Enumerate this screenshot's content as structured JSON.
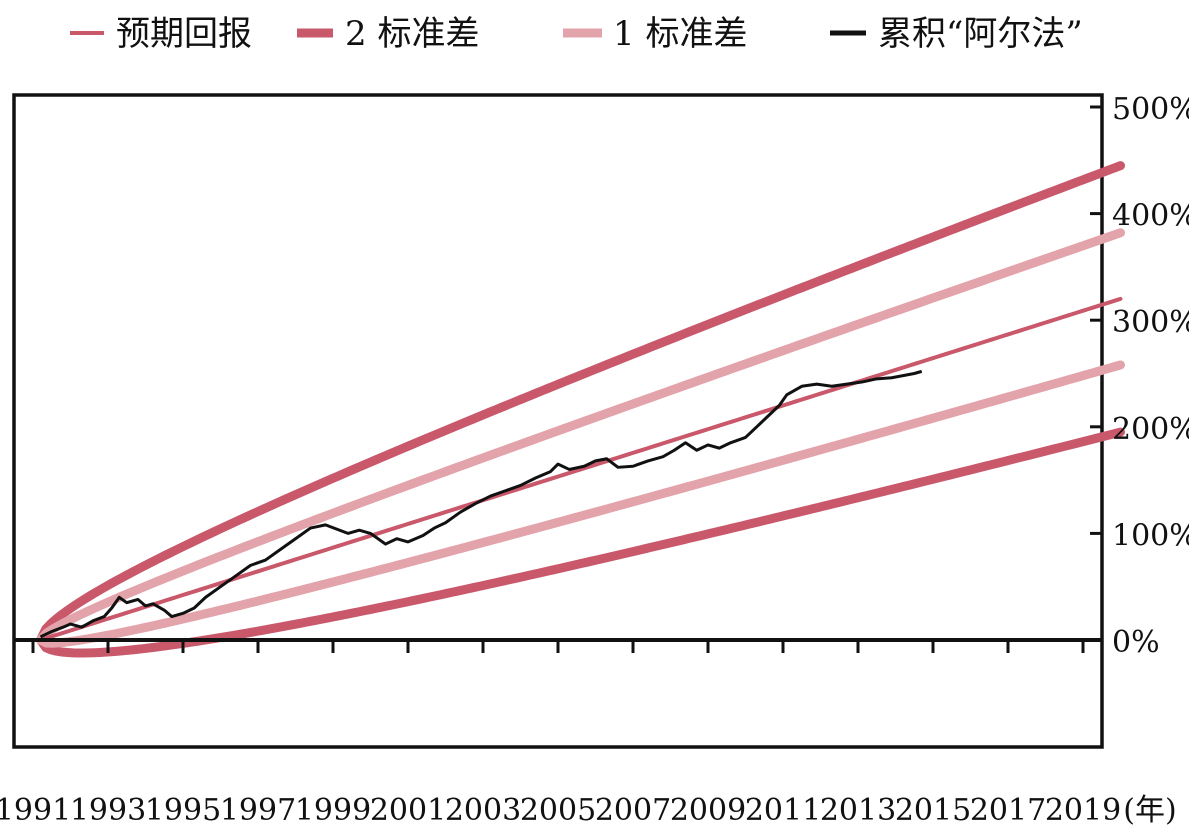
{
  "chart_data": {
    "type": "line",
    "legend": {
      "placement": "top",
      "items": [
        {
          "label": "预期回报",
          "series": "expected",
          "color": "#c9586b",
          "weight": "thin"
        },
        {
          "label": "2 标准差",
          "series": "sd2",
          "color": "#c9586b",
          "weight": "thick"
        },
        {
          "label": "1 标准差",
          "series": "sd1",
          "color": "#e3a3aa",
          "weight": "thick"
        },
        {
          "label": "累积“阿尔法”",
          "series": "alpha",
          "color": "#111111",
          "weight": "medium"
        }
      ]
    },
    "x_ticks": [
      "1991",
      "1993",
      "1995",
      "1997",
      "1999",
      "2001",
      "2003",
      "2005",
      "2007",
      "2009",
      "2011",
      "2013",
      "2015",
      "2017",
      "2019"
    ],
    "x_unit_label": "(年)",
    "y_ticks": [
      "500%",
      "400%",
      "300%",
      "200%",
      "100%",
      "0%"
    ],
    "xlim": [
      1991,
      2020
    ],
    "ylim": [
      -90,
      500
    ],
    "y_tick_values": [
      500,
      400,
      300,
      200,
      100,
      0
    ],
    "bands": {
      "origin_year": 1991.2,
      "end_year": 2020,
      "expected_end": 320,
      "sd1_end_offset": 62,
      "sd2_end_offset": 125
    },
    "alpha_series": {
      "x": [
        1991.2,
        1991.5,
        1991.8,
        1992.0,
        1992.3,
        1992.6,
        1992.9,
        1993.1,
        1993.3,
        1993.5,
        1993.8,
        1994.0,
        1994.2,
        1994.5,
        1994.7,
        1995.0,
        1995.3,
        1995.6,
        1996.0,
        1996.4,
        1996.8,
        1997.2,
        1997.6,
        1998.0,
        1998.4,
        1998.8,
        1999.1,
        1999.4,
        1999.7,
        2000.0,
        2000.4,
        2000.7,
        2001.0,
        2001.4,
        2001.7,
        2002.0,
        2002.4,
        2002.8,
        2003.2,
        2003.6,
        2004.0,
        2004.4,
        2004.8,
        2005.0,
        2005.3,
        2005.7,
        2006.0,
        2006.3,
        2006.6,
        2007.0,
        2007.4,
        2007.8,
        2008.1,
        2008.4,
        2008.7,
        2009.0,
        2009.3,
        2009.6,
        2010.0,
        2010.3,
        2010.6,
        2010.9,
        2011.1,
        2011.5,
        2011.9,
        2012.3,
        2012.7,
        2013.1,
        2013.5,
        2013.9,
        2014.2,
        2014.5,
        2014.7
      ],
      "y": [
        3,
        8,
        12,
        15,
        12,
        18,
        22,
        30,
        40,
        35,
        38,
        32,
        34,
        28,
        22,
        25,
        30,
        40,
        50,
        60,
        70,
        75,
        85,
        95,
        105,
        108,
        104,
        100,
        103,
        100,
        90,
        95,
        92,
        98,
        105,
        110,
        120,
        128,
        135,
        140,
        145,
        152,
        158,
        165,
        160,
        163,
        168,
        170,
        162,
        163,
        168,
        172,
        178,
        185,
        178,
        183,
        180,
        185,
        190,
        200,
        210,
        220,
        230,
        238,
        240,
        238,
        240,
        242,
        245,
        246,
        248,
        250,
        252
      ]
    }
  }
}
